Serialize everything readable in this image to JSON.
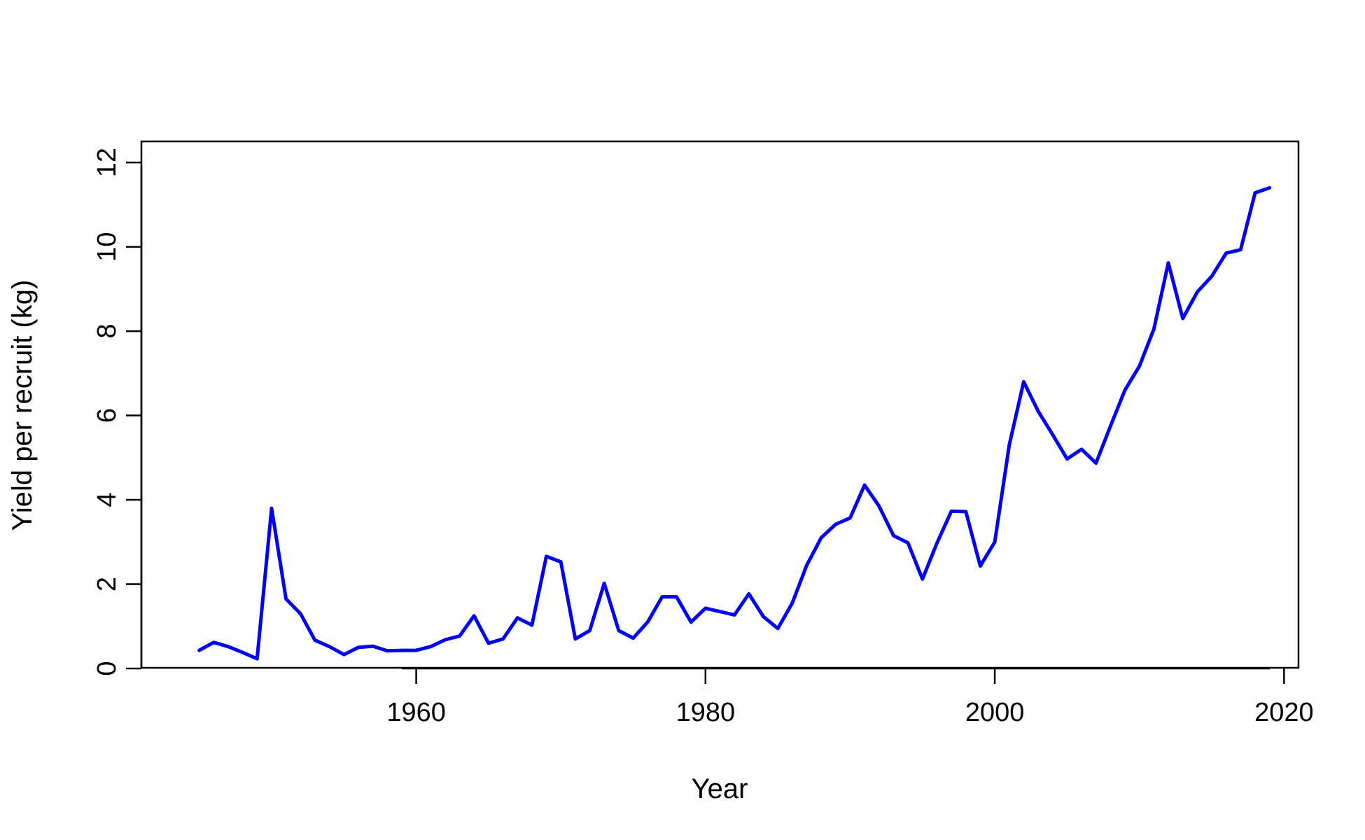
{
  "chart_data": {
    "type": "line",
    "title": "",
    "xlabel": "Year",
    "ylabel": "Yield per recruit (kg)",
    "xlim": [
      1941,
      2021
    ],
    "ylim": [
      0,
      12.5
    ],
    "x_ticks": [
      1960,
      1980,
      2000,
      2020
    ],
    "y_ticks": [
      0,
      2,
      4,
      6,
      8,
      10,
      12
    ],
    "x_tick_labels": [
      "1960",
      "1980",
      "2000",
      "2020"
    ],
    "y_tick_labels": [
      "0",
      "2",
      "4",
      "6",
      "8",
      "10",
      "12"
    ],
    "grid": false,
    "legend": "none",
    "line_color": "#0000ff",
    "series": [
      {
        "x": [
          1945,
          1946,
          1947,
          1948,
          1949,
          1950,
          1951,
          1952,
          1953,
          1954,
          1955,
          1956,
          1957,
          1958,
          1959,
          1960,
          1961,
          1962,
          1963,
          1964,
          1965,
          1966,
          1967,
          1968,
          1969,
          1970,
          1971,
          1972,
          1973,
          1974,
          1975,
          1976,
          1977,
          1978,
          1979,
          1980,
          1981,
          1982,
          1983,
          1984,
          1985,
          1986,
          1987,
          1988,
          1989,
          1990,
          1991,
          1992,
          1993,
          1994,
          1995,
          1996,
          1997,
          1998,
          1999,
          2000,
          2001,
          2002,
          2003,
          2004,
          2005,
          2006,
          2007,
          2008,
          2009,
          2010,
          2011,
          2012,
          2013,
          2014,
          2015,
          2016,
          2017,
          2018,
          2019
        ],
        "y": [
          0.43,
          0.62,
          0.52,
          0.38,
          0.23,
          3.8,
          1.65,
          1.3,
          0.67,
          0.52,
          0.33,
          0.5,
          0.53,
          0.42,
          0.43,
          0.43,
          0.52,
          0.68,
          0.77,
          1.25,
          0.6,
          0.7,
          1.2,
          1.03,
          2.66,
          2.53,
          0.7,
          0.9,
          2.02,
          0.9,
          0.72,
          1.1,
          1.7,
          1.7,
          1.1,
          1.43,
          1.35,
          1.27,
          1.77,
          1.23,
          0.95,
          1.55,
          2.45,
          3.1,
          3.42,
          3.57,
          4.35,
          3.85,
          3.15,
          2.98,
          2.12,
          2.97,
          3.73,
          3.72,
          2.43,
          3.0,
          5.3,
          6.8,
          6.1,
          5.55,
          4.97,
          5.2,
          4.87,
          5.75,
          6.6,
          7.17,
          8.05,
          9.62,
          8.3,
          8.93,
          9.3,
          9.85,
          9.93,
          11.28,
          11.4
        ]
      }
    ]
  }
}
